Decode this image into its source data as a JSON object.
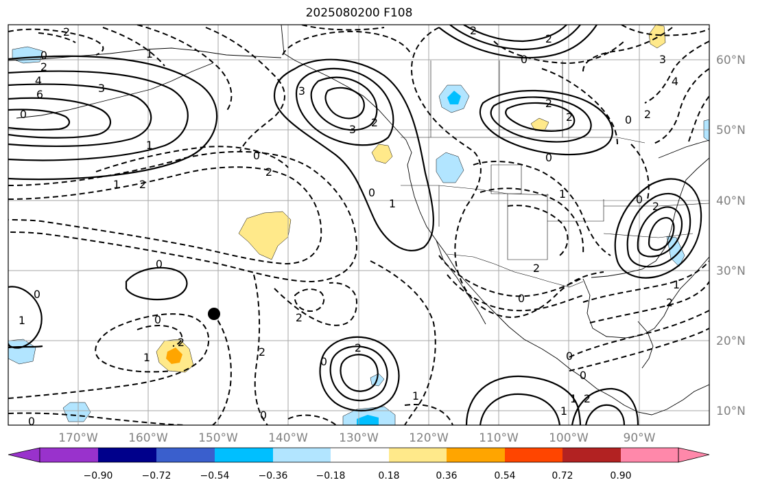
{
  "title": "2025080200 F108",
  "lon_labels": [
    "170°W",
    "160°W",
    "150°W",
    "140°W",
    "130°W",
    "120°W",
    "110°W",
    "100°W",
    "90°W"
  ],
  "lat_labels": [
    "60°N",
    "50°N",
    "40°N",
    "30°N",
    "20°N",
    "10°N"
  ],
  "colorbar": {
    "colors": [
      "#9932cc",
      "#00008b",
      "#3a5fcd",
      "#00bfff",
      "#b2e5ff",
      "#ffffff",
      "#ffe98a",
      "#ffa500",
      "#ff4500",
      "#b22222",
      "#ff88aa"
    ],
    "tick_labels": [
      "−0.90",
      "−0.72",
      "−0.54",
      "−0.36",
      "−0.18",
      "0.18",
      "0.36",
      "0.54",
      "0.72",
      "0.90"
    ]
  },
  "contour_labels": [
    "2",
    "1",
    "0",
    "2",
    "4",
    "6",
    "3",
    "1",
    "1",
    "2",
    "0",
    "2",
    "0",
    "0",
    "1",
    "2",
    "3",
    "3",
    "2",
    "0",
    "1",
    "0",
    "2",
    "2",
    "0",
    "2",
    "1",
    "2",
    "0",
    "2",
    "0",
    "0",
    "0",
    "1",
    "0",
    "1",
    "0",
    "1",
    "2",
    "0",
    "0",
    "2",
    "1",
    "2",
    "2",
    "0",
    "1",
    "2",
    "3",
    "4",
    "0",
    "2",
    "2"
  ],
  "marker": "black-dot"
}
